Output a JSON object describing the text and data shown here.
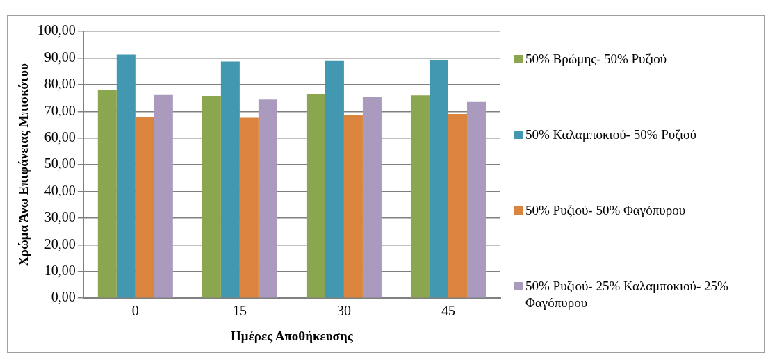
{
  "chart_data": {
    "type": "bar",
    "xlabel": "Ημέρες Αποθήκευσης",
    "ylabel": "Χρώμα Άνω Επιφάνειας Μπισκότου",
    "categories": [
      "0",
      "15",
      "30",
      "45"
    ],
    "series": [
      {
        "name": "50% Βρώμης- 50% Ρυζιού",
        "color": "#8aa64e",
        "values": [
          78.0,
          75.8,
          76.3,
          76.0
        ]
      },
      {
        "name": "50% Καλαμποκιού- 50% Ρυζιού",
        "color": "#4298b0",
        "values": [
          91.3,
          88.7,
          88.9,
          89.1
        ]
      },
      {
        "name": "50% Ρυζιού- 50% Φαγόπυρου",
        "color": "#db843e",
        "values": [
          67.7,
          67.6,
          68.7,
          69.0
        ]
      },
      {
        "name": "50% Ρυζιού- 25% Καλαμποκιού- 25% Φαγόπυρου",
        "color": "#aa9abd",
        "values": [
          76.1,
          74.4,
          75.4,
          73.5
        ]
      }
    ],
    "ylim": [
      0,
      100
    ],
    "yticks": [
      {
        "value": 0,
        "label": "0,00"
      },
      {
        "value": 10,
        "label": "10,00"
      },
      {
        "value": 20,
        "label": "20,00"
      },
      {
        "value": 30,
        "label": "30,00"
      },
      {
        "value": 40,
        "label": "40,00"
      },
      {
        "value": 50,
        "label": "50,00"
      },
      {
        "value": 60,
        "label": "60,00"
      },
      {
        "value": 70,
        "label": "70,00"
      },
      {
        "value": 80,
        "label": "80,00"
      },
      {
        "value": 90,
        "label": "90,00"
      },
      {
        "value": 100,
        "label": "100,00"
      }
    ],
    "grid": "y",
    "legend": "right"
  }
}
